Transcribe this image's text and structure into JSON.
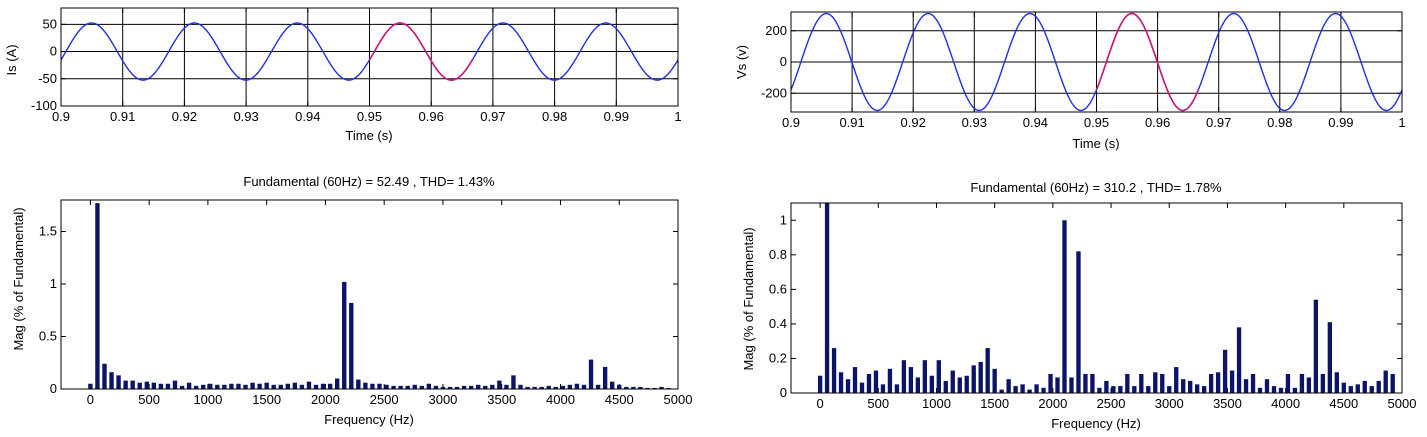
{
  "chart_data": [
    {
      "type": "line",
      "xlabel": "Time (s)",
      "ylabel": "Is (A)",
      "xlim": [
        0.9,
        1.0
      ],
      "ylim": [
        -100,
        80
      ],
      "xticks": [
        0.9,
        0.91,
        0.92,
        0.93,
        0.94,
        0.95,
        0.96,
        0.97,
        0.98,
        0.99,
        1.0
      ],
      "xtick_labels": [
        "0.9",
        "0.91",
        "0.92",
        "0.93",
        "0.94",
        "0.95",
        "0.96",
        "0.97",
        "0.98",
        "0.99",
        "1"
      ],
      "yticks": [
        -100,
        -50,
        0,
        50
      ],
      "ytick_labels": [
        "-100",
        "-50",
        "0",
        "50"
      ],
      "grid": true,
      "waveform": {
        "amplitude": 52.49,
        "frequency_hz": 60,
        "phase_deg": -17,
        "t_start": 0.9,
        "t_end": 1.0
      },
      "highlight": {
        "t_start": 0.95,
        "t_end": 0.9667,
        "color": "#cc1a78"
      },
      "line_color": "#2030e0"
    },
    {
      "type": "line",
      "xlabel": "Time (s)",
      "ylabel": "Vs (v)",
      "xlim": [
        0.9,
        1.0
      ],
      "ylim": [
        -320,
        320
      ],
      "xticks": [
        0.9,
        0.91,
        0.92,
        0.93,
        0.94,
        0.95,
        0.96,
        0.97,
        0.98,
        0.99,
        1.0
      ],
      "xtick_labels": [
        "0.9",
        "0.91",
        "0.92",
        "0.93",
        "0.94",
        "0.95",
        "0.96",
        "0.97",
        "0.98",
        "0.99",
        "1"
      ],
      "yticks": [
        -200,
        0,
        200
      ],
      "ytick_labels": [
        "-200",
        "0",
        "200"
      ],
      "grid": true,
      "waveform": {
        "amplitude": 310.2,
        "frequency_hz": 60,
        "phase_deg": -35,
        "t_start": 0.9,
        "t_end": 1.0
      },
      "highlight": {
        "t_start": 0.95,
        "t_end": 0.9667,
        "color": "#cc1a78"
      },
      "line_color": "#2030e0"
    },
    {
      "type": "bar",
      "title": "Fundamental (60Hz) = 52.49 , THD= 1.43%",
      "xlabel": "Frequency (Hz)",
      "ylabel": "Mag (% of Fundamental)",
      "xlim": [
        -250,
        5000
      ],
      "ylim": [
        0,
        1.8
      ],
      "xticks": [
        0,
        500,
        1000,
        1500,
        2000,
        2500,
        3000,
        3500,
        4000,
        4500,
        5000
      ],
      "xtick_labels": [
        "0",
        "500",
        "1000",
        "1500",
        "2000",
        "2500",
        "3000",
        "3500",
        "4000",
        "4500",
        "5000"
      ],
      "yticks": [
        0,
        0.5,
        1,
        1.5
      ],
      "ytick_labels": [
        "0",
        "0.5",
        "1",
        "1.5"
      ],
      "bar_color": "#0b1466",
      "x": [
        0,
        60,
        120,
        180,
        240,
        300,
        360,
        420,
        480,
        540,
        600,
        660,
        720,
        780,
        840,
        900,
        960,
        1020,
        1080,
        1140,
        1200,
        1260,
        1320,
        1380,
        1440,
        1500,
        1560,
        1620,
        1680,
        1740,
        1800,
        1860,
        1920,
        1980,
        2040,
        2100,
        2160,
        2220,
        2280,
        2340,
        2400,
        2460,
        2520,
        2580,
        2640,
        2700,
        2760,
        2820,
        2880,
        2940,
        3000,
        3060,
        3120,
        3180,
        3240,
        3300,
        3360,
        3420,
        3480,
        3540,
        3600,
        3660,
        3720,
        3780,
        3840,
        3900,
        3960,
        4020,
        4080,
        4140,
        4200,
        4260,
        4320,
        4380,
        4440,
        4500,
        4560,
        4620,
        4680,
        4740,
        4800,
        4860,
        4920
      ],
      "values": [
        0.05,
        1.77,
        0.24,
        0.16,
        0.13,
        0.08,
        0.08,
        0.06,
        0.07,
        0.06,
        0.05,
        0.05,
        0.08,
        0.03,
        0.06,
        0.03,
        0.04,
        0.05,
        0.04,
        0.04,
        0.05,
        0.05,
        0.04,
        0.06,
        0.05,
        0.06,
        0.04,
        0.04,
        0.05,
        0.06,
        0.04,
        0.07,
        0.04,
        0.05,
        0.05,
        0.1,
        1.02,
        0.82,
        0.09,
        0.06,
        0.05,
        0.05,
        0.04,
        0.03,
        0.03,
        0.03,
        0.04,
        0.03,
        0.05,
        0.03,
        0.02,
        0.02,
        0.02,
        0.03,
        0.03,
        0.04,
        0.03,
        0.04,
        0.08,
        0.04,
        0.13,
        0.04,
        0.02,
        0.02,
        0.02,
        0.03,
        0.02,
        0.03,
        0.04,
        0.05,
        0.04,
        0.28,
        0.04,
        0.21,
        0.07,
        0.04,
        0.02,
        0.02,
        0.02,
        0.01,
        0.01,
        0.02,
        0.01
      ]
    },
    {
      "type": "bar",
      "title": "Fundamental (60Hz) = 310.2 , THD= 1.78%",
      "xlabel": "Frequency (Hz)",
      "ylabel": "Mag (% of Fundamental)",
      "xlim": [
        -250,
        5000
      ],
      "ylim": [
        0,
        1.1
      ],
      "xticks": [
        0,
        500,
        1000,
        1500,
        2000,
        2500,
        3000,
        3500,
        4000,
        4500,
        5000
      ],
      "xtick_labels": [
        "0",
        "500",
        "1000",
        "1500",
        "2000",
        "2500",
        "3000",
        "3500",
        "4000",
        "4500",
        "5000"
      ],
      "yticks": [
        0,
        0.2,
        0.4,
        0.6,
        0.8,
        1
      ],
      "ytick_labels": [
        "0",
        "0.2",
        "0.4",
        "0.6",
        "0.8",
        "1"
      ],
      "bar_color": "#0b1466",
      "x": [
        0,
        60,
        120,
        180,
        240,
        300,
        360,
        420,
        480,
        540,
        600,
        660,
        720,
        780,
        840,
        900,
        960,
        1020,
        1080,
        1140,
        1200,
        1260,
        1320,
        1380,
        1440,
        1500,
        1560,
        1620,
        1680,
        1740,
        1800,
        1860,
        1920,
        1980,
        2040,
        2100,
        2160,
        2220,
        2280,
        2340,
        2400,
        2460,
        2520,
        2580,
        2640,
        2700,
        2760,
        2820,
        2880,
        2940,
        3000,
        3060,
        3120,
        3180,
        3240,
        3300,
        3360,
        3420,
        3480,
        3540,
        3600,
        3660,
        3720,
        3780,
        3840,
        3900,
        3960,
        4020,
        4080,
        4140,
        4200,
        4260,
        4320,
        4380,
        4440,
        4500,
        4560,
        4620,
        4680,
        4740,
        4800,
        4860,
        4920
      ],
      "values": [
        0.1,
        1.1,
        0.26,
        0.12,
        0.08,
        0.15,
        0.06,
        0.11,
        0.13,
        0.05,
        0.14,
        0.05,
        0.19,
        0.15,
        0.09,
        0.19,
        0.1,
        0.19,
        0.07,
        0.13,
        0.09,
        0.1,
        0.16,
        0.18,
        0.26,
        0.14,
        0.02,
        0.08,
        0.04,
        0.05,
        0.02,
        0.05,
        0.03,
        0.11,
        0.09,
        1.0,
        0.09,
        0.82,
        0.11,
        0.11,
        0.03,
        0.07,
        0.04,
        0.04,
        0.11,
        0.04,
        0.11,
        0.04,
        0.12,
        0.11,
        0.04,
        0.15,
        0.08,
        0.07,
        0.05,
        0.04,
        0.11,
        0.12,
        0.25,
        0.13,
        0.38,
        0.08,
        0.11,
        0.03,
        0.08,
        0.04,
        0.03,
        0.11,
        0.03,
        0.11,
        0.09,
        0.54,
        0.11,
        0.41,
        0.12,
        0.06,
        0.04,
        0.05,
        0.07,
        0.04,
        0.07,
        0.13,
        0.11
      ]
    }
  ]
}
